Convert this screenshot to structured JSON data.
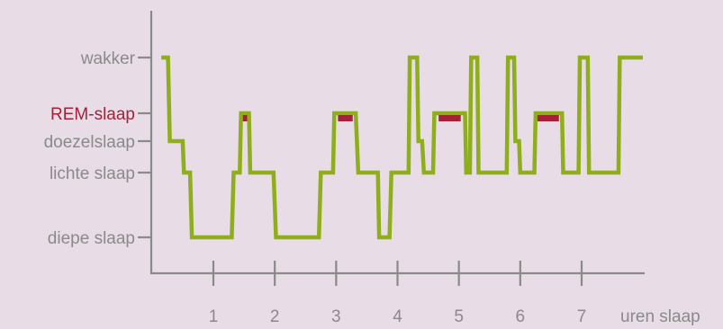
{
  "chart_data": {
    "type": "line",
    "title": "",
    "xlabel": "uren slaap",
    "ylabel": "",
    "xlim": [
      0,
      7.8
    ],
    "x_ticks": [
      1,
      2,
      3,
      4,
      5,
      6,
      7
    ],
    "y_levels": [
      {
        "key": "wakker",
        "label": "wakker",
        "color": "#8a8a8a"
      },
      {
        "key": "rem",
        "label": "REM-slaap",
        "color": "#a3223a"
      },
      {
        "key": "doezel",
        "label": "doezelslaap",
        "color": "#8a8a8a"
      },
      {
        "key": "licht",
        "label": "lichte slaap",
        "color": "#8a8a8a"
      },
      {
        "key": "diep",
        "label": "diepe slaap",
        "color": "#8a8a8a"
      }
    ],
    "line_color": "#8fae1b",
    "rem_color": "#a3223a",
    "hypnogram": [
      {
        "x": 0.15,
        "level": "wakker"
      },
      {
        "x": 0.26,
        "level": "wakker"
      },
      {
        "x": 0.29,
        "level": "doezel"
      },
      {
        "x": 0.5,
        "level": "doezel"
      },
      {
        "x": 0.52,
        "level": "licht"
      },
      {
        "x": 0.62,
        "level": "licht"
      },
      {
        "x": 0.65,
        "level": "diep"
      },
      {
        "x": 1.3,
        "level": "diep"
      },
      {
        "x": 1.33,
        "level": "licht"
      },
      {
        "x": 1.43,
        "level": "licht"
      },
      {
        "x": 1.45,
        "level": "rem"
      },
      {
        "x": 1.58,
        "level": "rem"
      },
      {
        "x": 1.6,
        "level": "licht"
      },
      {
        "x": 1.98,
        "level": "licht"
      },
      {
        "x": 2.02,
        "level": "diep"
      },
      {
        "x": 2.72,
        "level": "diep"
      },
      {
        "x": 2.75,
        "level": "licht"
      },
      {
        "x": 2.95,
        "level": "licht"
      },
      {
        "x": 2.97,
        "level": "rem"
      },
      {
        "x": 3.32,
        "level": "rem"
      },
      {
        "x": 3.36,
        "level": "licht"
      },
      {
        "x": 3.68,
        "level": "licht"
      },
      {
        "x": 3.7,
        "level": "diep"
      },
      {
        "x": 3.87,
        "level": "diep"
      },
      {
        "x": 3.9,
        "level": "licht"
      },
      {
        "x": 4.18,
        "level": "licht"
      },
      {
        "x": 4.2,
        "level": "wakker"
      },
      {
        "x": 4.32,
        "level": "wakker"
      },
      {
        "x": 4.34,
        "level": "doezel"
      },
      {
        "x": 4.4,
        "level": "doezel"
      },
      {
        "x": 4.43,
        "level": "licht"
      },
      {
        "x": 4.58,
        "level": "licht"
      },
      {
        "x": 4.6,
        "level": "rem"
      },
      {
        "x": 5.1,
        "level": "rem"
      },
      {
        "x": 5.12,
        "level": "licht"
      },
      {
        "x": 5.18,
        "level": "licht"
      },
      {
        "x": 5.2,
        "level": "wakker"
      },
      {
        "x": 5.3,
        "level": "wakker"
      },
      {
        "x": 5.32,
        "level": "licht"
      },
      {
        "x": 5.78,
        "level": "licht"
      },
      {
        "x": 5.8,
        "level": "wakker"
      },
      {
        "x": 5.9,
        "level": "wakker"
      },
      {
        "x": 5.92,
        "level": "doezel"
      },
      {
        "x": 5.98,
        "level": "doezel"
      },
      {
        "x": 6.0,
        "level": "licht"
      },
      {
        "x": 6.23,
        "level": "licht"
      },
      {
        "x": 6.25,
        "level": "rem"
      },
      {
        "x": 6.68,
        "level": "rem"
      },
      {
        "x": 6.7,
        "level": "licht"
      },
      {
        "x": 6.95,
        "level": "licht"
      },
      {
        "x": 6.97,
        "level": "wakker"
      },
      {
        "x": 7.1,
        "level": "wakker"
      },
      {
        "x": 7.12,
        "level": "licht"
      },
      {
        "x": 7.6,
        "level": "licht"
      },
      {
        "x": 7.62,
        "level": "wakker"
      },
      {
        "x": 8.1,
        "level": "wakker"
      }
    ],
    "rem_segments": [
      {
        "start": 1.48,
        "end": 1.55
      },
      {
        "start": 3.03,
        "end": 3.27
      },
      {
        "start": 4.67,
        "end": 5.03
      },
      {
        "start": 6.28,
        "end": 6.63
      }
    ]
  }
}
